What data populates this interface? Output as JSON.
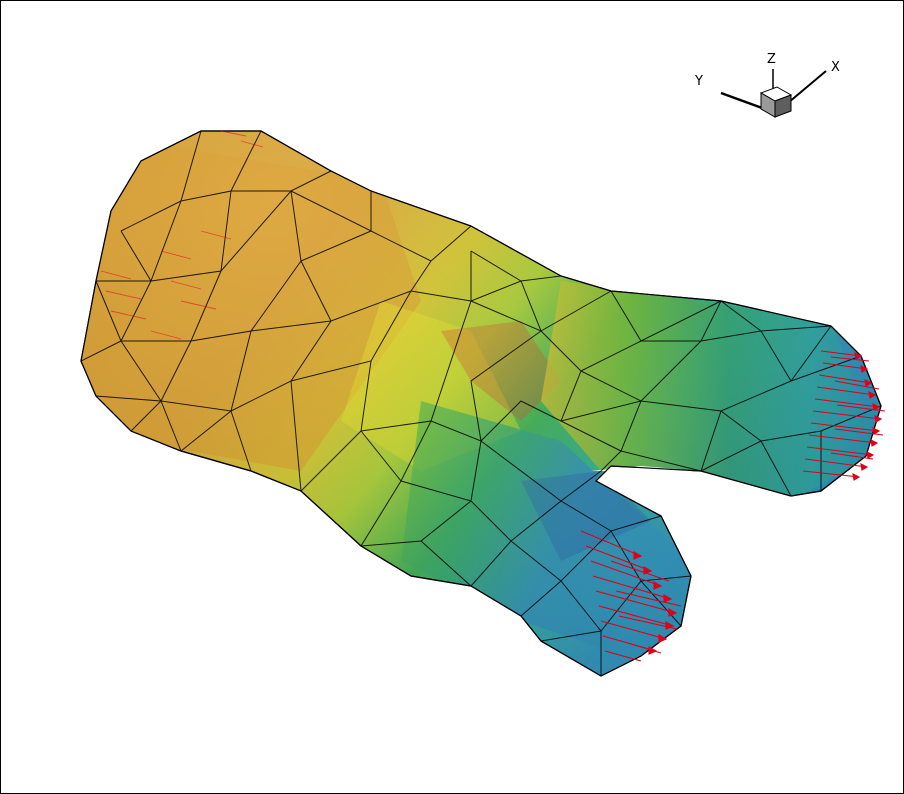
{
  "axes_triad": {
    "x_label": "X",
    "y_label": "Y",
    "z_label": "Z",
    "icon": "axes-triad-icon"
  },
  "colors": {
    "frame": "#000000",
    "background": "#ffffff",
    "mesh_edges": "#000000",
    "vectors": "#e0001a",
    "contour_palette": [
      "#d8961c",
      "#e2a82a",
      "#c9c21f",
      "#e6e31a",
      "#7cc224",
      "#2fa85a",
      "#2bb8a3",
      "#2aa0c8",
      "#2065b0"
    ]
  },
  "scene": {
    "description_type": "3d-surface-mesh-with-vectors",
    "legend_shown": false
  }
}
